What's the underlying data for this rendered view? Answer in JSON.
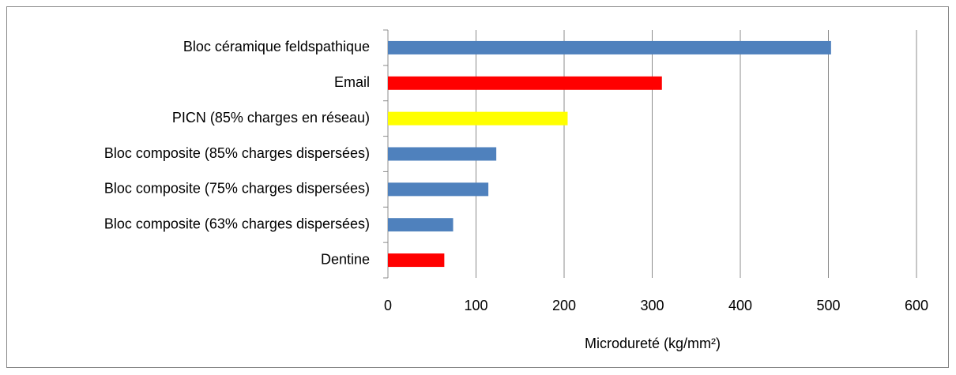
{
  "chart_data": {
    "type": "bar",
    "orientation": "horizontal",
    "categories": [
      "Bloc céramique feldspathique",
      "Email",
      "PICN (85% charges en réseau)",
      "Bloc composite (85% charges dispersées)",
      "Bloc composite (75% charges dispersées)",
      "Bloc composite (63% charges dispersées)",
      "Dentine"
    ],
    "values": [
      503,
      311,
      204,
      123,
      114,
      74,
      64
    ],
    "colors": [
      "#4f81bd",
      "#ff0000",
      "#ffff00",
      "#4f81bd",
      "#4f81bd",
      "#4f81bd",
      "#ff0000"
    ],
    "xlabel": "Microdureté (kg/mm²)",
    "xlim": [
      0,
      600
    ],
    "xticks": [
      0,
      100,
      200,
      300,
      400,
      500,
      600
    ],
    "grid": true
  }
}
